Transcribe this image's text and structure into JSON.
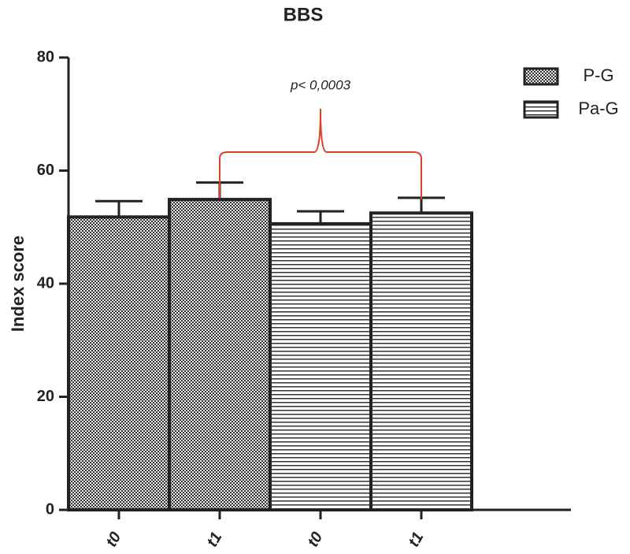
{
  "chart_data": {
    "type": "bar",
    "title": "BBS",
    "y_label": "Index score",
    "categories": [
      "t0",
      "t1",
      "t0",
      "t1"
    ],
    "series": [
      {
        "name": "P-G",
        "pattern": "checker",
        "values": [
          51.8,
          54.9,
          null,
          null
        ],
        "errors": [
          2.8,
          3.0,
          null,
          null
        ]
      },
      {
        "name": "Pa-G",
        "pattern": "hlines",
        "values": [
          null,
          null,
          50.6,
          52.5
        ],
        "errors": [
          null,
          null,
          2.2,
          2.7
        ]
      }
    ],
    "ylim": [
      0,
      80
    ],
    "yticks": [
      0,
      20,
      40,
      60,
      80
    ],
    "annotation": {
      "text": "p< 0,0003",
      "from": 1,
      "to": 3
    },
    "legend": "upper right"
  }
}
